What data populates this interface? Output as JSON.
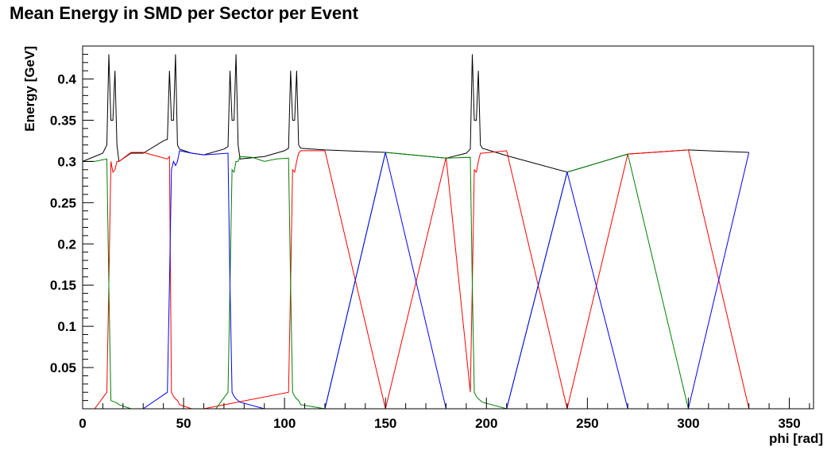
{
  "chart_data": {
    "type": "line",
    "title": "Mean Energy in SMD per Sector per Event",
    "xlabel": "phi [rad]",
    "ylabel": "Energy [GeV]",
    "xlim": [
      0,
      362
    ],
    "ylim": [
      0,
      0.44
    ],
    "grid": false,
    "legend": "none",
    "x_ticks": [
      0,
      50,
      100,
      150,
      200,
      250,
      300,
      350
    ],
    "x_tick_labels": [
      "0",
      "50",
      "100",
      "150",
      "200",
      "250",
      "300",
      "350"
    ],
    "y_ticks": [
      0.05,
      0.1,
      0.15,
      0.2,
      0.25,
      0.3,
      0.35,
      0.4
    ],
    "y_tick_labels": [
      "0.05",
      "0.1",
      "0.15",
      "0.2",
      "0.25",
      "0.3",
      "0.35",
      "0.4"
    ],
    "series": [
      {
        "color": "#000000",
        "x": [
          0,
          10,
          12,
          13,
          14,
          15,
          16,
          17,
          18,
          24,
          30,
          40,
          42,
          43,
          44,
          45,
          46,
          47,
          48,
          54,
          60,
          70,
          72,
          73,
          74,
          75,
          76,
          77,
          78,
          90,
          100,
          102,
          103,
          104,
          105,
          106,
          107,
          108,
          120,
          150,
          180,
          190,
          192,
          193,
          194,
          195,
          196,
          197,
          198,
          210,
          240,
          270,
          300,
          330
        ],
        "y": [
          0.3,
          0.31,
          0.32,
          0.43,
          0.35,
          0.35,
          0.41,
          0.32,
          0.3,
          0.31,
          0.31,
          0.325,
          0.327,
          0.41,
          0.35,
          0.35,
          0.43,
          0.32,
          0.315,
          0.31,
          0.308,
          0.315,
          0.318,
          0.41,
          0.35,
          0.35,
          0.43,
          0.32,
          0.303,
          0.306,
          0.313,
          0.316,
          0.41,
          0.35,
          0.35,
          0.41,
          0.32,
          0.316,
          0.314,
          0.311,
          0.304,
          0.31,
          0.315,
          0.43,
          0.35,
          0.35,
          0.41,
          0.32,
          0.316,
          0.307,
          0.287,
          0.309,
          0.314,
          0.311
        ]
      },
      {
        "color": "#ff0000",
        "x": [
          6,
          12,
          13,
          14,
          15,
          16,
          17,
          18,
          24,
          30,
          36,
          42,
          43,
          44,
          45,
          46,
          47,
          48,
          54,
          60,
          102,
          103,
          104,
          105,
          106,
          107,
          108,
          120,
          150,
          180,
          192,
          193,
          194,
          195,
          196,
          197,
          198,
          210,
          240,
          270,
          300,
          330
        ],
        "y": [
          0,
          0.02,
          0.15,
          0.3,
          0.287,
          0.29,
          0.3,
          0.3,
          0.311,
          0.311,
          0.307,
          0.303,
          0.306,
          0.02,
          0.015,
          0.012,
          0.01,
          0.005,
          0,
          0,
          0.02,
          0.15,
          0.29,
          0.287,
          0.3,
          0.31,
          0.313,
          0.313,
          0,
          0.305,
          0.02,
          0.15,
          0.29,
          0.287,
          0.3,
          0.31,
          0.31,
          0.313,
          0,
          0.309,
          0.314,
          0
        ]
      },
      {
        "color": "#008000",
        "x": [
          0,
          6,
          12,
          13,
          14,
          15,
          16,
          17,
          18,
          24,
          60,
          66,
          72,
          73,
          74,
          75,
          76,
          77,
          78,
          84,
          90,
          96,
          102,
          103,
          104,
          105,
          106,
          107,
          108,
          120,
          150,
          180,
          192,
          193,
          194,
          195,
          196,
          197,
          198,
          210,
          240,
          270,
          300
        ],
        "y": [
          0.3,
          0.3,
          0.303,
          0.15,
          0.01,
          0.009,
          0.008,
          0.007,
          0.005,
          0,
          0,
          0,
          0.02,
          0.15,
          0.29,
          0.287,
          0.3,
          0.3,
          0.306,
          0.305,
          0.3,
          0.303,
          0.304,
          0.15,
          0.02,
          0.015,
          0.012,
          0.01,
          0.005,
          0,
          0.311,
          0.304,
          0.305,
          0.15,
          0.02,
          0.015,
          0.012,
          0.01,
          0.008,
          0,
          0.287,
          0.309,
          0
        ]
      },
      {
        "color": "#0000ff",
        "x": [
          30,
          42,
          43,
          44,
          45,
          46,
          47,
          48,
          54,
          60,
          66,
          72,
          73,
          74,
          75,
          76,
          77,
          78,
          90,
          120,
          150,
          180,
          210,
          240,
          270,
          300,
          330
        ],
        "y": [
          0,
          0.02,
          0.15,
          0.29,
          0.3,
          0.295,
          0.3,
          0.313,
          0.31,
          0.308,
          0.309,
          0.31,
          0.15,
          0.02,
          0.015,
          0.012,
          0.01,
          0.008,
          0,
          0,
          0.311,
          0,
          0,
          0.287,
          0,
          0,
          0.311
        ]
      }
    ]
  }
}
